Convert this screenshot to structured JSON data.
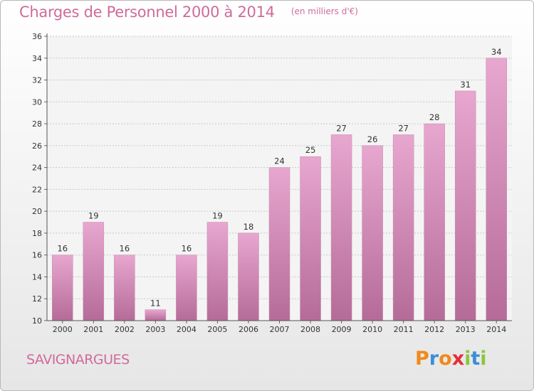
{
  "header": {
    "title": "Charges de Personnel 2000 à 2014",
    "subtitle": "(en milliers d'€)"
  },
  "footer": {
    "commune": "SAVIGNARGUES",
    "logo_text": "Proxiti"
  },
  "colors": {
    "bar_top": "#e7a7cf",
    "bar_bottom": "#b56b98",
    "title": "#d06a9b",
    "logo_letters": [
      "#f08a1c",
      "#3a8fd9",
      "#f08a1c",
      "#e32e3a",
      "#8dc63f",
      "#3a8fd9",
      "#8dc63f"
    ]
  },
  "chart_data": {
    "type": "bar",
    "categories": [
      "2000",
      "2001",
      "2002",
      "2003",
      "2004",
      "2005",
      "2006",
      "2007",
      "2008",
      "2009",
      "2010",
      "2011",
      "2012",
      "2013",
      "2014"
    ],
    "values": [
      16,
      19,
      16,
      11,
      16,
      19,
      18,
      24,
      25,
      27,
      26,
      27,
      28,
      31,
      34
    ],
    "ylim": [
      10,
      36
    ],
    "yticks": [
      10,
      12,
      14,
      16,
      18,
      20,
      22,
      24,
      26,
      28,
      30,
      32,
      34,
      36
    ],
    "grid": true
  }
}
